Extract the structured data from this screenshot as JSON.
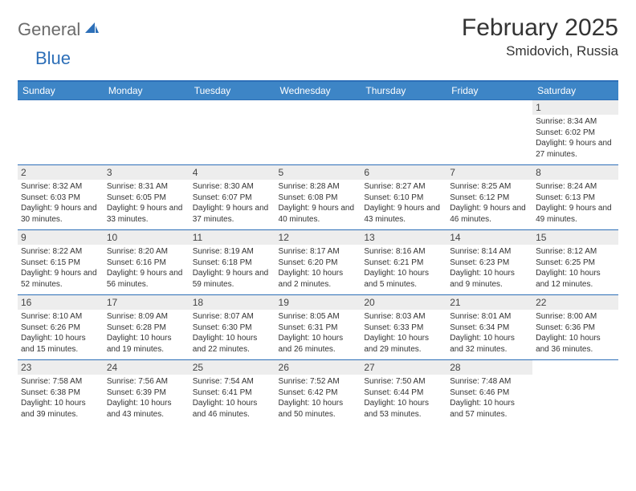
{
  "brand": {
    "part1": "General",
    "part2": "Blue"
  },
  "title": "February 2025",
  "location": "Smidovich, Russia",
  "colors": {
    "header_bar": "#3d85c6",
    "rule": "#2d6fb8",
    "daynum_bg": "#ededed",
    "logo_gray": "#6b6b6b",
    "logo_blue": "#2d6fb8"
  },
  "weekdays": [
    "Sunday",
    "Monday",
    "Tuesday",
    "Wednesday",
    "Thursday",
    "Friday",
    "Saturday"
  ],
  "grid": [
    [
      {
        "blank": true
      },
      {
        "blank": true
      },
      {
        "blank": true
      },
      {
        "blank": true
      },
      {
        "blank": true
      },
      {
        "blank": true
      },
      {
        "day": "1",
        "sunrise": "8:34 AM",
        "sunset": "6:02 PM",
        "daylight": "9 hours and 27 minutes."
      }
    ],
    [
      {
        "day": "2",
        "sunrise": "8:32 AM",
        "sunset": "6:03 PM",
        "daylight": "9 hours and 30 minutes."
      },
      {
        "day": "3",
        "sunrise": "8:31 AM",
        "sunset": "6:05 PM",
        "daylight": "9 hours and 33 minutes."
      },
      {
        "day": "4",
        "sunrise": "8:30 AM",
        "sunset": "6:07 PM",
        "daylight": "9 hours and 37 minutes."
      },
      {
        "day": "5",
        "sunrise": "8:28 AM",
        "sunset": "6:08 PM",
        "daylight": "9 hours and 40 minutes."
      },
      {
        "day": "6",
        "sunrise": "8:27 AM",
        "sunset": "6:10 PM",
        "daylight": "9 hours and 43 minutes."
      },
      {
        "day": "7",
        "sunrise": "8:25 AM",
        "sunset": "6:12 PM",
        "daylight": "9 hours and 46 minutes."
      },
      {
        "day": "8",
        "sunrise": "8:24 AM",
        "sunset": "6:13 PM",
        "daylight": "9 hours and 49 minutes."
      }
    ],
    [
      {
        "day": "9",
        "sunrise": "8:22 AM",
        "sunset": "6:15 PM",
        "daylight": "9 hours and 52 minutes."
      },
      {
        "day": "10",
        "sunrise": "8:20 AM",
        "sunset": "6:16 PM",
        "daylight": "9 hours and 56 minutes."
      },
      {
        "day": "11",
        "sunrise": "8:19 AM",
        "sunset": "6:18 PM",
        "daylight": "9 hours and 59 minutes."
      },
      {
        "day": "12",
        "sunrise": "8:17 AM",
        "sunset": "6:20 PM",
        "daylight": "10 hours and 2 minutes."
      },
      {
        "day": "13",
        "sunrise": "8:16 AM",
        "sunset": "6:21 PM",
        "daylight": "10 hours and 5 minutes."
      },
      {
        "day": "14",
        "sunrise": "8:14 AM",
        "sunset": "6:23 PM",
        "daylight": "10 hours and 9 minutes."
      },
      {
        "day": "15",
        "sunrise": "8:12 AM",
        "sunset": "6:25 PM",
        "daylight": "10 hours and 12 minutes."
      }
    ],
    [
      {
        "day": "16",
        "sunrise": "8:10 AM",
        "sunset": "6:26 PM",
        "daylight": "10 hours and 15 minutes."
      },
      {
        "day": "17",
        "sunrise": "8:09 AM",
        "sunset": "6:28 PM",
        "daylight": "10 hours and 19 minutes."
      },
      {
        "day": "18",
        "sunrise": "8:07 AM",
        "sunset": "6:30 PM",
        "daylight": "10 hours and 22 minutes."
      },
      {
        "day": "19",
        "sunrise": "8:05 AM",
        "sunset": "6:31 PM",
        "daylight": "10 hours and 26 minutes."
      },
      {
        "day": "20",
        "sunrise": "8:03 AM",
        "sunset": "6:33 PM",
        "daylight": "10 hours and 29 minutes."
      },
      {
        "day": "21",
        "sunrise": "8:01 AM",
        "sunset": "6:34 PM",
        "daylight": "10 hours and 32 minutes."
      },
      {
        "day": "22",
        "sunrise": "8:00 AM",
        "sunset": "6:36 PM",
        "daylight": "10 hours and 36 minutes."
      }
    ],
    [
      {
        "day": "23",
        "sunrise": "7:58 AM",
        "sunset": "6:38 PM",
        "daylight": "10 hours and 39 minutes."
      },
      {
        "day": "24",
        "sunrise": "7:56 AM",
        "sunset": "6:39 PM",
        "daylight": "10 hours and 43 minutes."
      },
      {
        "day": "25",
        "sunrise": "7:54 AM",
        "sunset": "6:41 PM",
        "daylight": "10 hours and 46 minutes."
      },
      {
        "day": "26",
        "sunrise": "7:52 AM",
        "sunset": "6:42 PM",
        "daylight": "10 hours and 50 minutes."
      },
      {
        "day": "27",
        "sunrise": "7:50 AM",
        "sunset": "6:44 PM",
        "daylight": "10 hours and 53 minutes."
      },
      {
        "day": "28",
        "sunrise": "7:48 AM",
        "sunset": "6:46 PM",
        "daylight": "10 hours and 57 minutes."
      },
      {
        "blank": true
      }
    ]
  ],
  "labels": {
    "sunrise": "Sunrise: ",
    "sunset": "Sunset: ",
    "daylight": "Daylight: "
  }
}
